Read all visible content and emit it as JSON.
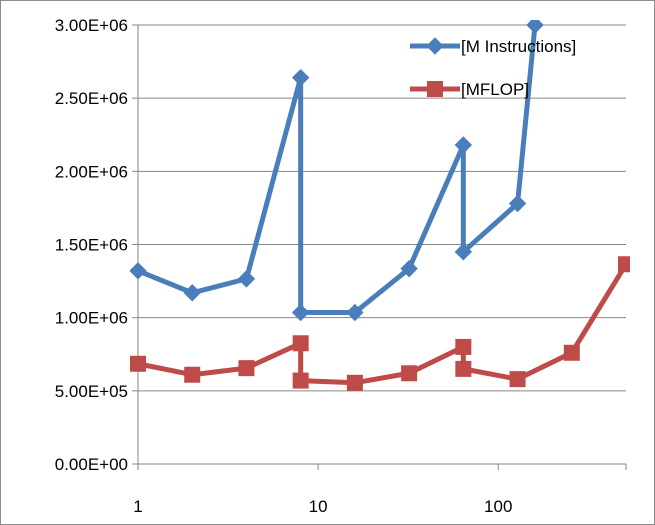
{
  "chart_data": {
    "type": "line",
    "x_scale": "log",
    "xlim": [
      1,
      512
    ],
    "ylim": [
      0,
      3000000
    ],
    "x_ticks": [
      1,
      10,
      100
    ],
    "x_tick_labels": [
      "1",
      "10",
      "100"
    ],
    "y_ticks": [
      0,
      500000,
      1000000,
      1500000,
      2000000,
      2500000,
      3000000
    ],
    "y_tick_labels": [
      "0.00E+00",
      "5.00E+05",
      "1.00E+06",
      "1.50E+06",
      "2.00E+06",
      "2.50E+06",
      "3.00E+06"
    ],
    "grid": "horizontal",
    "legend_position": "top-right",
    "series": [
      {
        "name": "[M Instructions]",
        "color": "#4a7ebb",
        "marker": "diamond",
        "points": [
          {
            "x": 1,
            "y": 1320000
          },
          {
            "x": 2,
            "y": 1170000
          },
          {
            "x": 4,
            "y": 1265000
          },
          {
            "x": 8,
            "y": 2640000
          },
          {
            "x": 8,
            "y": 1035000
          },
          {
            "x": 16,
            "y": 1035000
          },
          {
            "x": 32,
            "y": 1335000
          },
          {
            "x": 64,
            "y": 2180000
          },
          {
            "x": 64,
            "y": 1450000
          },
          {
            "x": 128,
            "y": 1780000
          },
          {
            "x": 160,
            "y": 3000000
          }
        ]
      },
      {
        "name": "[MFLOP]",
        "color": "#be4b48",
        "marker": "square",
        "points": [
          {
            "x": 1,
            "y": 685000
          },
          {
            "x": 2,
            "y": 610000
          },
          {
            "x": 4,
            "y": 655000
          },
          {
            "x": 8,
            "y": 825000
          },
          {
            "x": 8,
            "y": 570000
          },
          {
            "x": 16,
            "y": 555000
          },
          {
            "x": 32,
            "y": 620000
          },
          {
            "x": 64,
            "y": 800000
          },
          {
            "x": 64,
            "y": 650000
          },
          {
            "x": 128,
            "y": 580000
          },
          {
            "x": 256,
            "y": 760000
          },
          {
            "x": 512,
            "y": 1365000
          }
        ]
      }
    ]
  }
}
